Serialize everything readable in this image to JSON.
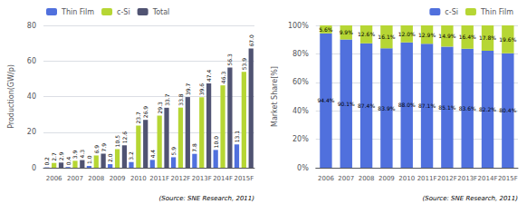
{
  "chart_data": [
    {
      "type": "bar",
      "ylabel": "Production(GW/p)",
      "annotations": [
        "(Source: SNE Research, 2011)"
      ],
      "categories": [
        "2006",
        "2007",
        "2008",
        "2009",
        "2010",
        "2011F",
        "2012F",
        "2013F",
        "2014F",
        "2015F"
      ],
      "series": [
        {
          "name": "Thin Film",
          "values": [
            0.2,
            0.4,
            1.0,
            2.0,
            3.2,
            4.4,
            5.9,
            7.8,
            10.0,
            13.1
          ],
          "value_labels": [
            "0.2",
            "0.4",
            "1.0",
            "2.0",
            "3.2",
            "4.4",
            "5.9",
            "7.8",
            "10.0",
            "13.1"
          ]
        },
        {
          "name": "c-Si",
          "values": [
            2.7,
            3.9,
            6.9,
            10.5,
            23.7,
            29.3,
            33.8,
            39.6,
            46.3,
            53.9
          ],
          "value_labels": [
            "2.7",
            "3.9",
            "6.9",
            "10.5",
            "23.7",
            "29.3",
            "33.8",
            "39.6",
            "46.3",
            "53.9"
          ]
        },
        {
          "name": "Total",
          "values": [
            2.9,
            4.3,
            7.9,
            12.6,
            26.9,
            33.7,
            39.7,
            47.4,
            56.3,
            67.0
          ],
          "value_labels": [
            "2.9",
            "4.3",
            "7.9",
            "12.6",
            "26.9",
            "33.7",
            "39.7",
            "47.4",
            "56.3",
            "67.0"
          ]
        }
      ],
      "ylim": [
        0,
        80
      ],
      "yticks": [
        0,
        20,
        40,
        60,
        80
      ],
      "grid": true,
      "legend": "upper left",
      "data_labels": true
    },
    {
      "type": "bar",
      "ylabel": "Market Share[%]",
      "annotations": [
        "(Source: SNE Research, 2011)"
      ],
      "categories": [
        "2006",
        "2007",
        "2008",
        "2009",
        "2010",
        "2011F",
        "2012F",
        "2013F",
        "2014F",
        "2015F"
      ],
      "series": [
        {
          "name": "c-Si",
          "values": [
            94.4,
            90.1,
            87.4,
            83.9,
            88.0,
            87.1,
            85.1,
            83.6,
            82.2,
            80.4
          ],
          "value_labels": [
            "94.4%",
            "90.1%",
            "87.4%",
            "83.9%",
            "88.0%",
            "87.1%",
            "85.1%",
            "83.6%",
            "82.2%",
            "80.4%"
          ]
        },
        {
          "name": "Thin Film",
          "values": [
            5.6,
            9.9,
            12.6,
            16.1,
            12.0,
            12.9,
            14.9,
            16.4,
            17.8,
            19.6
          ],
          "value_labels": [
            "5.6%",
            "9.9%",
            "12.6%",
            "16.1%",
            "12.0%",
            "12.9%",
            "14.9%",
            "16.4%",
            "17.8%",
            "19.6%"
          ]
        }
      ],
      "ylim": [
        0,
        100
      ],
      "yticks": [
        {
          "value": 0,
          "label": "0%"
        },
        {
          "value": 20,
          "label": "20%"
        },
        {
          "value": 40,
          "label": "40%"
        },
        {
          "value": 60,
          "label": "60%"
        },
        {
          "value": 80,
          "label": "80%"
        },
        {
          "value": 100,
          "label": "100%"
        }
      ],
      "grid": true,
      "legend": "upper right",
      "stacked": true,
      "data_labels": true
    }
  ]
}
